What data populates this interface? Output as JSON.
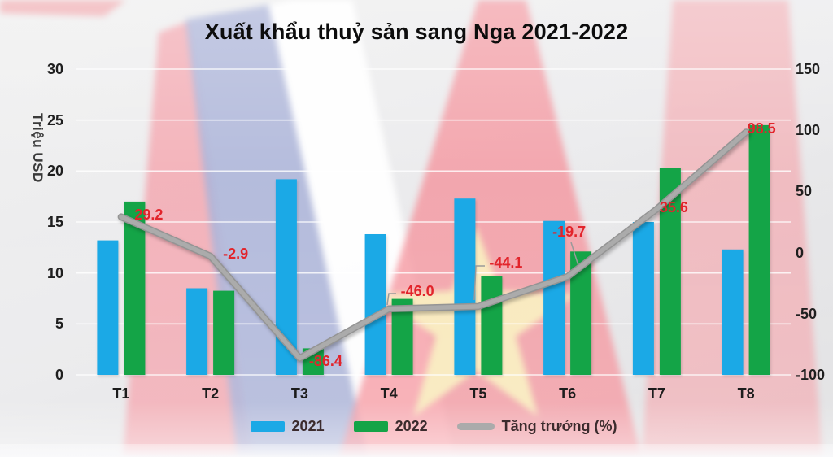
{
  "title": "Xuất khẩu thuỷ sản sang Nga 2021-2022",
  "chart_data": {
    "type": "combo-bar-line",
    "categories": [
      "T1",
      "T2",
      "T3",
      "T4",
      "T5",
      "T6",
      "T7",
      "T8"
    ],
    "series": [
      {
        "name": "2021",
        "type": "bar",
        "axis": "left",
        "color": "#1BA9E6",
        "values": [
          13.2,
          8.5,
          19.2,
          13.8,
          17.3,
          15.1,
          15.0,
          12.3
        ]
      },
      {
        "name": "2022",
        "type": "bar",
        "axis": "left",
        "color": "#14A447",
        "values": [
          17.0,
          8.25,
          2.6,
          7.45,
          9.7,
          12.1,
          20.3,
          24.5
        ]
      },
      {
        "name": "Tăng trưởng (%)",
        "type": "line",
        "axis": "right",
        "color": "#ABABAB",
        "values": [
          29.2,
          -2.9,
          -86.4,
          -46.0,
          -44.1,
          -19.7,
          35.6,
          98.5
        ],
        "data_labels": [
          "29.2",
          "-2.9",
          "-86.4",
          "-46.0",
          "-44.1",
          "-19.7",
          "35.6",
          "98.5"
        ],
        "label_color": "#E2242B"
      }
    ],
    "left_axis": {
      "title": "Triệu USD",
      "min": 0,
      "max": 30,
      "ticks": [
        "30",
        "25",
        "20",
        "15",
        "10",
        "5",
        "0"
      ]
    },
    "right_axis": {
      "min": -100,
      "max": 150,
      "ticks": [
        "150",
        "100",
        "50",
        "0",
        "-50",
        "-100"
      ]
    },
    "legend": {
      "position": "bottom",
      "items": [
        "2021",
        "2022",
        "Tăng trưởng (%)"
      ]
    },
    "grid": true,
    "gridline_color": "#FFFFFF"
  }
}
